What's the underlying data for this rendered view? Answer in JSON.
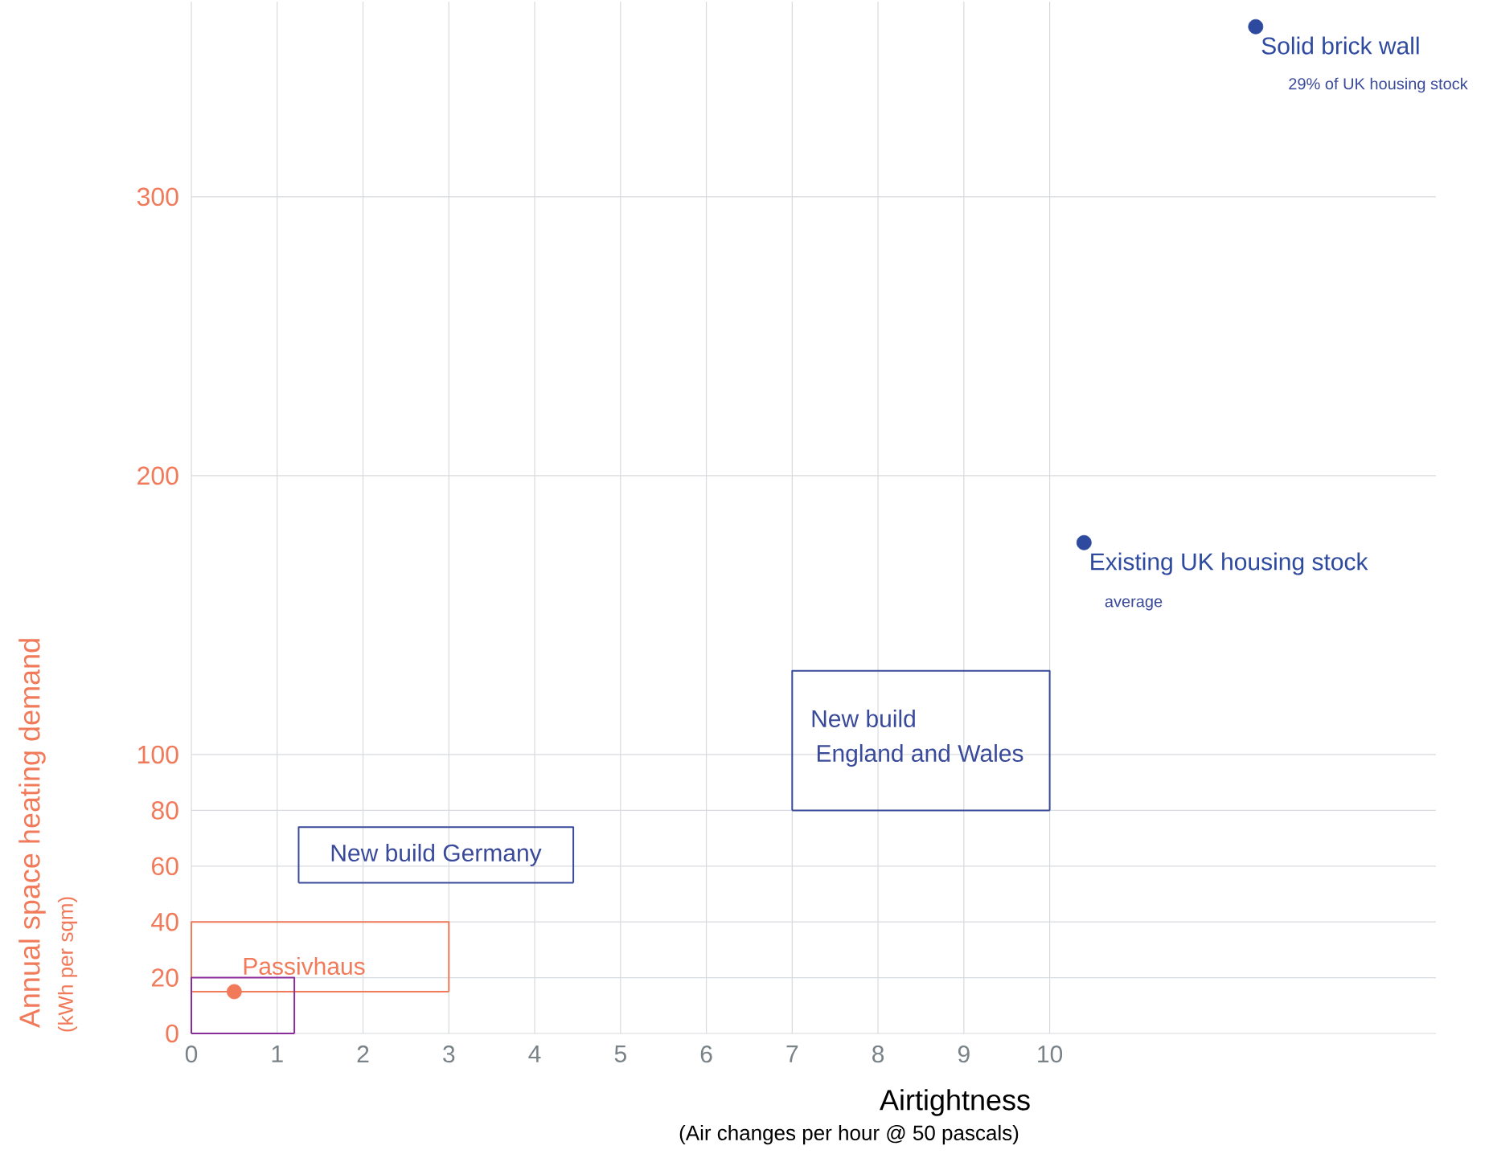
{
  "chart_data": {
    "type": "scatter",
    "xlabel": "Airtightness",
    "ylabel": "Annual space heating demand",
    "xlim": [
      0,
      14.5
    ],
    "ylim": [
      0,
      370
    ],
    "xticks": [
      0,
      1,
      2,
      3,
      4,
      5,
      6,
      7,
      8,
      9,
      10
    ],
    "yticks": [
      0,
      20,
      40,
      60,
      80,
      100,
      200,
      300
    ],
    "grid": true,
    "series": [
      {
        "name": "Solid brick wall",
        "color": "#2e4a9e",
        "marker": "circle",
        "x": [
          12.4
        ],
        "values": [
          361
        ]
      },
      {
        "name": "Existing UK housing stock",
        "color": "#2e4a9e",
        "marker": "circle",
        "x": [
          10.4
        ],
        "values": [
          176
        ]
      },
      {
        "color": "#f07a5a",
        "marker": "circle",
        "x": [
          0.5
        ],
        "values": [
          15
        ]
      },
      {
        "type": "line",
        "marker": "none",
        "line_style": "solid",
        "color": "#f07a5a",
        "x": [
          0,
          0,
          3,
          3
        ],
        "values": [
          15,
          40,
          40,
          15
        ]
      },
      {
        "type": "line",
        "marker": "none",
        "line_style": "solid",
        "color": "#f07a5a",
        "x": [
          0,
          3
        ],
        "values": [
          15,
          15
        ]
      },
      {
        "type": "line",
        "marker": "none",
        "line_style": "solid",
        "color": "#3a4a9a",
        "x": [
          1.25,
          1.25,
          4.45,
          4.45
        ],
        "values": [
          54,
          74,
          74,
          54
        ]
      },
      {
        "type": "line",
        "marker": "none",
        "line_style": "solid",
        "color": "#3a4a9a",
        "x": [
          1.25,
          4.45
        ],
        "values": [
          54,
          54
        ]
      },
      {
        "type": "line",
        "marker": "none",
        "line_style": "solid",
        "color": "#3a4a9a",
        "x": [
          7,
          7,
          10,
          10
        ],
        "values": [
          80,
          130,
          130,
          80
        ]
      },
      {
        "type": "line",
        "marker": "none",
        "line_style": "solid",
        "color": "#3a4a9a",
        "x": [
          7,
          10
        ],
        "values": [
          80,
          80
        ]
      },
      {
        "type": "line",
        "marker": "none",
        "line_style": "solid",
        "color": "#8b2c9c",
        "x": [
          0,
          0,
          1.2,
          1.2
        ],
        "values": [
          0,
          20,
          20,
          0
        ]
      },
      {
        "type": "line",
        "marker": "none",
        "line_style": "solid",
        "color": "#8b2c9c",
        "x": [
          0,
          1.2
        ],
        "values": [
          0,
          0
        ]
      }
    ],
    "annotations": [
      "29% of UK housing stock",
      "average",
      "Passivhaus",
      "New build Germany",
      "New build",
      "England and Wales",
      "(Air changes per hour @ 50 pascals)",
      "(kWh per sqm)"
    ]
  }
}
